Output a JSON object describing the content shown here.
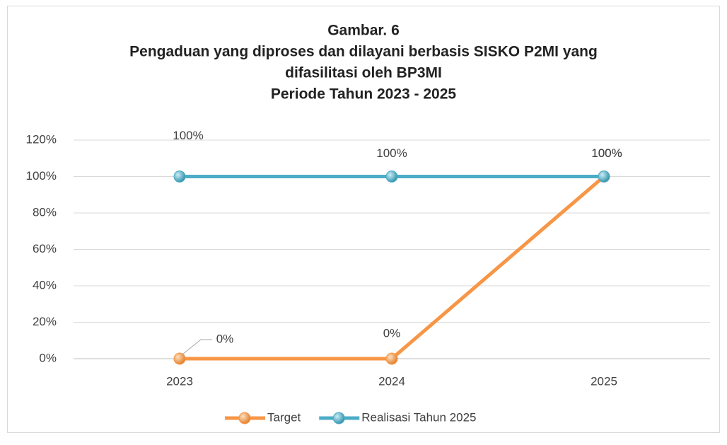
{
  "chart_data": {
    "type": "line",
    "title": [
      "Gambar. 6",
      "Pengaduan yang diproses dan dilayani berbasis SISKO P2MI yang",
      "difasilitasi oleh BP3MI",
      "Periode Tahun 2023 - 2025"
    ],
    "categories": [
      "2023",
      "2024",
      "2025"
    ],
    "series": [
      {
        "name": "Target",
        "color": "#f79646",
        "values": [
          0,
          0,
          100
        ],
        "value_labels": [
          "0%",
          "0%",
          "100%"
        ]
      },
      {
        "name": "Realisasi Tahun 2025",
        "color": "#4bacc6",
        "values": [
          100,
          100,
          100
        ],
        "value_labels": [
          "100%",
          "100%",
          "100%"
        ]
      }
    ],
    "ylim": [
      0,
      120
    ],
    "yticks": [
      {
        "value": 0,
        "label": "0%"
      },
      {
        "value": 20,
        "label": "20%"
      },
      {
        "value": 40,
        "label": "40%"
      },
      {
        "value": 60,
        "label": "60%"
      },
      {
        "value": 80,
        "label": "80%"
      },
      {
        "value": 100,
        "label": "100%"
      },
      {
        "value": 120,
        "label": "120%"
      }
    ],
    "grid": true,
    "legend": "bottom"
  }
}
